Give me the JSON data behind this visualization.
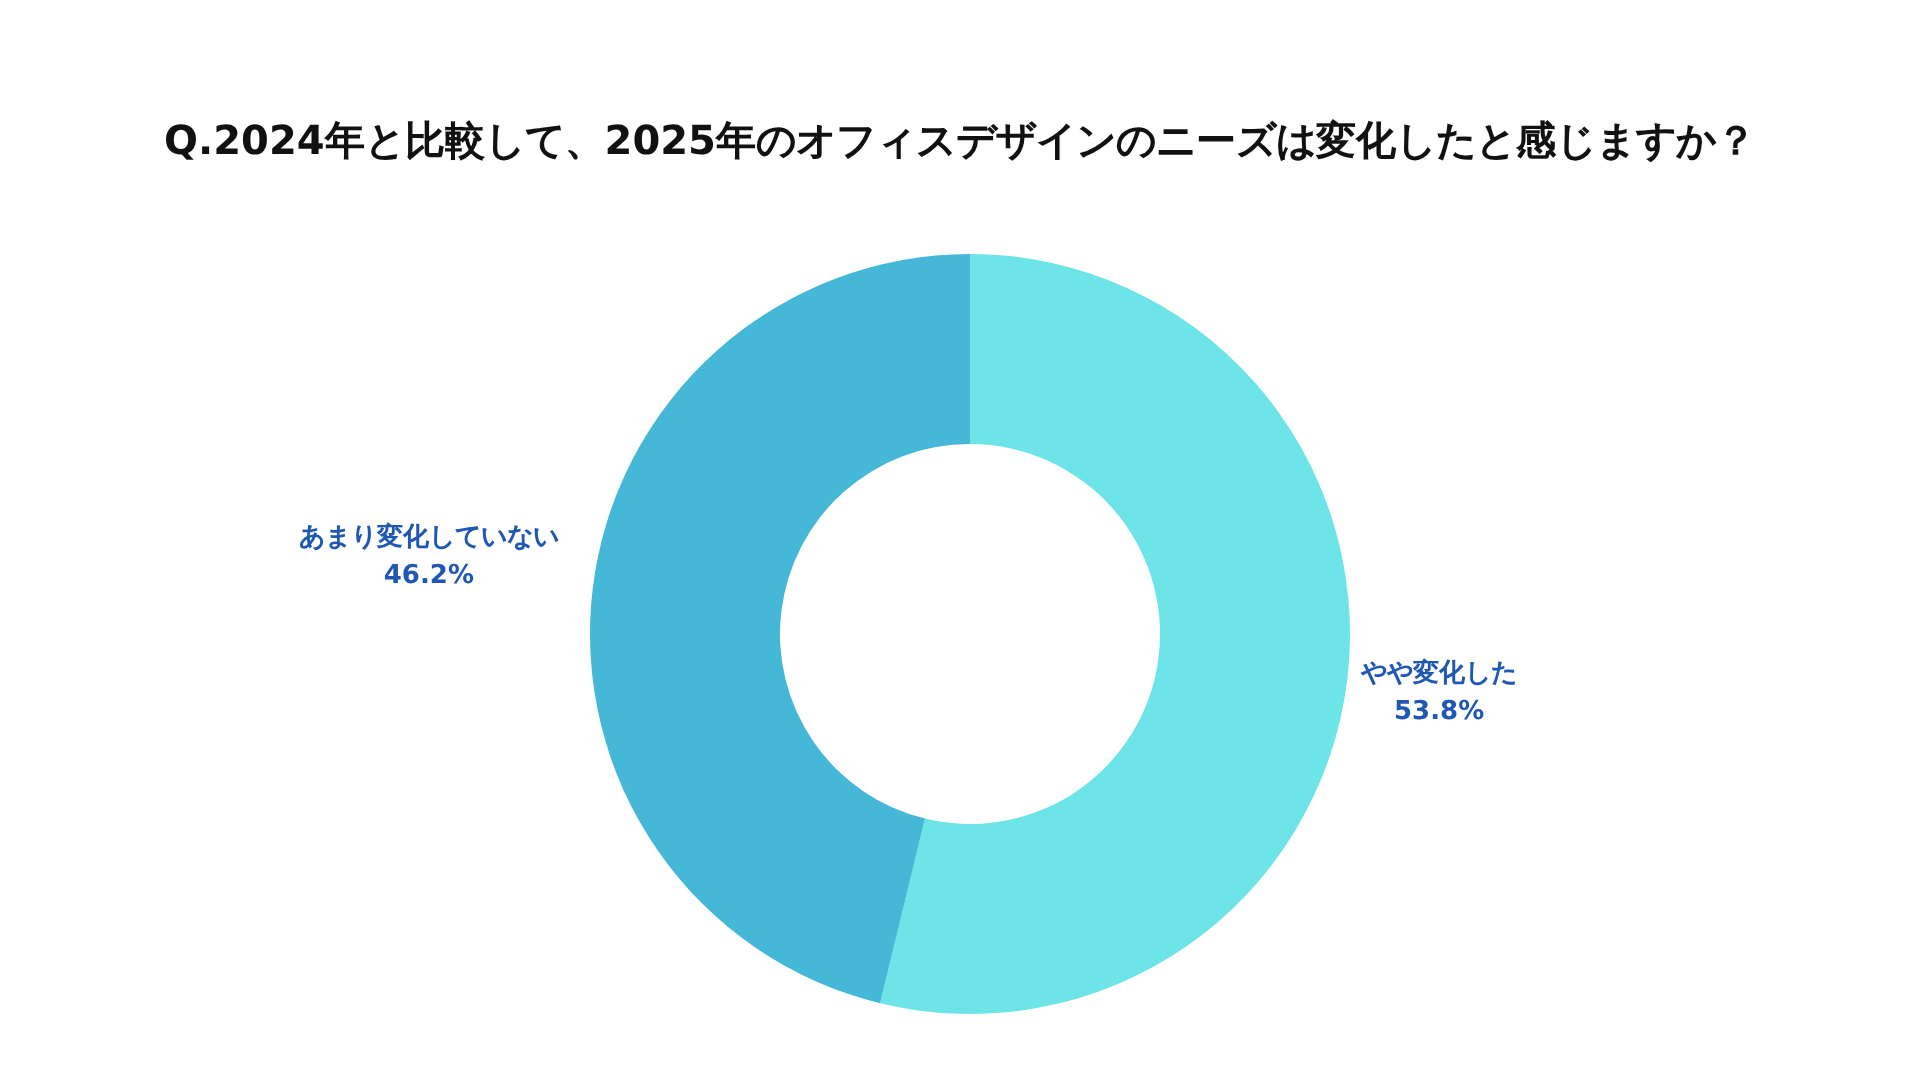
{
  "chart_data": {
    "type": "donut",
    "title": "Q.2024年と比較して、2025年のオフィスデザインのニーズは変化したと感じますか？",
    "categories": [
      "やや変化した",
      "あまり変化していない"
    ],
    "values": [
      53.8,
      46.2
    ],
    "colors": [
      "#6ce4e8",
      "#44b8d6"
    ],
    "value_labels": [
      "53.8%",
      "46.2%"
    ]
  }
}
